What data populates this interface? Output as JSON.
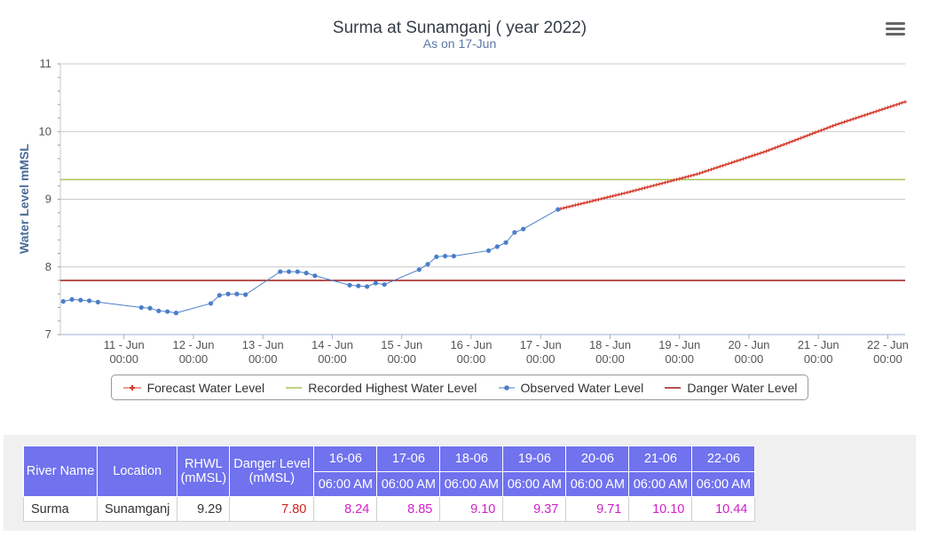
{
  "chart_data": {
    "type": "line",
    "title": "Surma at Sunamganj ( year 2022)",
    "subtitle": "As on 17-Jun",
    "xlabel": "",
    "ylabel": "Water Level mMSL",
    "ylim": [
      7,
      11
    ],
    "yticks": [
      "7",
      "8",
      "9",
      "10",
      "11"
    ],
    "xlim": [
      "2022-06-10 02:00",
      "2022-06-22 06:00"
    ],
    "xticks": [
      {
        "date": "2022-06-11 00:00",
        "line1": "11 - Jun",
        "line2": "00:00"
      },
      {
        "date": "2022-06-12 00:00",
        "line1": "12 - Jun",
        "line2": "00:00"
      },
      {
        "date": "2022-06-13 00:00",
        "line1": "13 - Jun",
        "line2": "00:00"
      },
      {
        "date": "2022-06-14 00:00",
        "line1": "14 - Jun",
        "line2": "00:00"
      },
      {
        "date": "2022-06-15 00:00",
        "line1": "15 - Jun",
        "line2": "00:00"
      },
      {
        "date": "2022-06-16 00:00",
        "line1": "16 - Jun",
        "line2": "00:00"
      },
      {
        "date": "2022-06-17 00:00",
        "line1": "17 - Jun",
        "line2": "00:00"
      },
      {
        "date": "2022-06-18 00:00",
        "line1": "18 - Jun",
        "line2": "00:00"
      },
      {
        "date": "2022-06-19 00:00",
        "line1": "19 - Jun",
        "line2": "00:00"
      },
      {
        "date": "2022-06-20 00:00",
        "line1": "20 - Jun",
        "line2": "00:00"
      },
      {
        "date": "2022-06-21 00:00",
        "line1": "21 - Jun",
        "line2": "00:00"
      },
      {
        "date": "2022-06-22 00:00",
        "line1": "22 - Jun",
        "line2": "00:00"
      }
    ],
    "grid": true,
    "legend": "bottom",
    "series": [
      {
        "name": "Observed Water Level",
        "color": "#4a7ec8",
        "x": [
          "2022-06-10 03:00",
          "2022-06-10 06:00",
          "2022-06-10 09:00",
          "2022-06-10 12:00",
          "2022-06-10 15:00",
          "2022-06-11 06:00",
          "2022-06-11 09:00",
          "2022-06-11 12:00",
          "2022-06-11 15:00",
          "2022-06-11 18:00",
          "2022-06-12 06:00",
          "2022-06-12 09:00",
          "2022-06-12 12:00",
          "2022-06-12 15:00",
          "2022-06-12 18:00",
          "2022-06-13 06:00",
          "2022-06-13 09:00",
          "2022-06-13 12:00",
          "2022-06-13 15:00",
          "2022-06-13 18:00",
          "2022-06-14 06:00",
          "2022-06-14 09:00",
          "2022-06-14 12:00",
          "2022-06-14 15:00",
          "2022-06-14 18:00",
          "2022-06-15 06:00",
          "2022-06-15 09:00",
          "2022-06-15 12:00",
          "2022-06-15 15:00",
          "2022-06-15 18:00",
          "2022-06-16 06:00",
          "2022-06-16 09:00",
          "2022-06-16 12:00",
          "2022-06-16 15:00",
          "2022-06-16 18:00",
          "2022-06-17 06:00"
        ],
        "y": [
          7.49,
          7.52,
          7.51,
          7.5,
          7.48,
          7.4,
          7.39,
          7.35,
          7.34,
          7.32,
          7.46,
          7.58,
          7.6,
          7.6,
          7.59,
          7.93,
          7.93,
          7.93,
          7.91,
          7.87,
          7.73,
          7.72,
          7.71,
          7.76,
          7.74,
          7.96,
          8.04,
          8.15,
          8.16,
          8.16,
          8.24,
          8.3,
          8.36,
          8.51,
          8.56,
          8.85
        ]
      },
      {
        "name": "Forecast Water Level",
        "color": "#d53d2e",
        "x": [
          "2022-06-17 06:00",
          "2022-06-18 06:00",
          "2022-06-19 06:00",
          "2022-06-20 06:00",
          "2022-06-21 06:00",
          "2022-06-22 06:00"
        ],
        "y": [
          8.85,
          9.1,
          9.37,
          9.71,
          10.1,
          10.44
        ]
      },
      {
        "name": "Recorded Highest Water Level",
        "color": "#a9c455",
        "x": [
          "2022-06-10 02:00",
          "2022-06-22 06:00"
        ],
        "y": [
          9.29,
          9.29
        ]
      },
      {
        "name": "Danger Water Level",
        "color": "#9c1818",
        "x": [
          "2022-06-10 02:00",
          "2022-06-22 06:00"
        ],
        "y": [
          7.8,
          7.8
        ]
      }
    ]
  },
  "menu_icon": "hamburger-menu-icon",
  "legend": {
    "items": [
      {
        "label": "Forecast Water Level",
        "color": "#d53d2e",
        "marker": "plus"
      },
      {
        "label": "Recorded Highest Water Level",
        "color": "#a9c455",
        "marker": "line"
      },
      {
        "label": "Observed Water Level",
        "color": "#4a7ec8",
        "marker": "dot"
      },
      {
        "label": "Danger Water Level",
        "color": "#9c1818",
        "marker": "line"
      }
    ]
  },
  "table": {
    "headers": {
      "river": "River Name",
      "location": "Location",
      "rhwl_line1": "RHWL",
      "rhwl_line2": "(mMSL)",
      "danger_line1": "Danger Level",
      "danger_line2": "(mMSL)",
      "dates": [
        "16-06",
        "17-06",
        "18-06",
        "19-06",
        "20-06",
        "21-06",
        "22-06"
      ],
      "times": [
        "06:00 AM",
        "06:00 AM",
        "06:00 AM",
        "06:00 AM",
        "06:00 AM",
        "06:00 AM",
        "06:00 AM"
      ]
    },
    "row": {
      "river": "Surma",
      "location": "Sunamganj",
      "rhwl": "9.29",
      "danger": "7.80",
      "values": [
        "8.24",
        "8.85",
        "9.10",
        "9.37",
        "9.71",
        "10.10",
        "10.44"
      ]
    },
    "colors": {
      "header_bg": "#7072ee",
      "danger_text": "#d42020",
      "value_text": "#d020c8"
    }
  }
}
